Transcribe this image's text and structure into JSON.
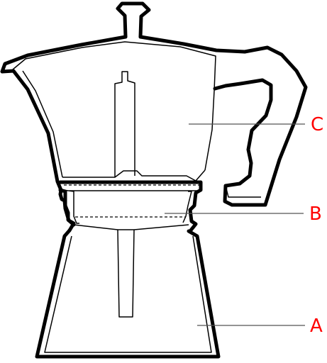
{
  "labels": {
    "a": "A",
    "b": "B",
    "c": "C"
  },
  "colors": {
    "label": "#ff0000",
    "outline": "#000000",
    "leader": "#555555"
  }
}
